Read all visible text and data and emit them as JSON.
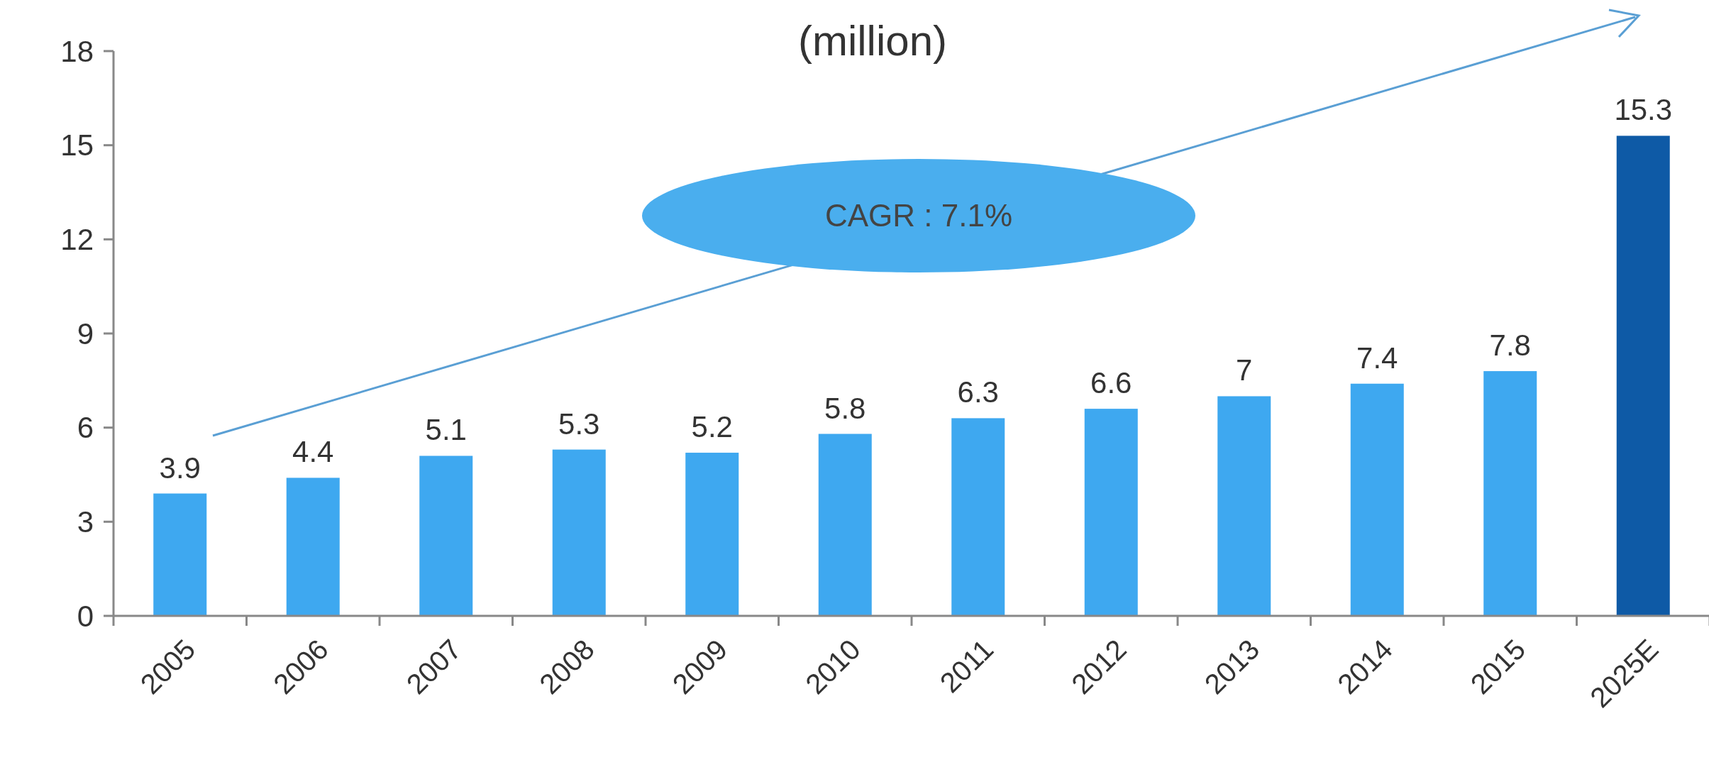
{
  "chart_data": {
    "type": "bar",
    "title": "(million)",
    "categories": [
      "2005",
      "2006",
      "2007",
      "2008",
      "2009",
      "2010",
      "2011",
      "2012",
      "2013",
      "2014",
      "2015",
      "2025E"
    ],
    "values": [
      3.9,
      4.4,
      5.1,
      5.3,
      5.2,
      5.8,
      6.3,
      6.6,
      7,
      7.4,
      7.8,
      15.3
    ],
    "colors": [
      "#3ea8f0",
      "#3ea8f0",
      "#3ea8f0",
      "#3ea8f0",
      "#3ea8f0",
      "#3ea8f0",
      "#3ea8f0",
      "#3ea8f0",
      "#3ea8f0",
      "#3ea8f0",
      "#3ea8f0",
      "#0e5aa6"
    ],
    "ylim": [
      0,
      18
    ],
    "yticks": [
      0,
      3,
      6,
      9,
      12,
      15,
      18
    ],
    "grid": false,
    "data_labels": true,
    "annotations": [
      "CAGR : 7.1%"
    ]
  }
}
